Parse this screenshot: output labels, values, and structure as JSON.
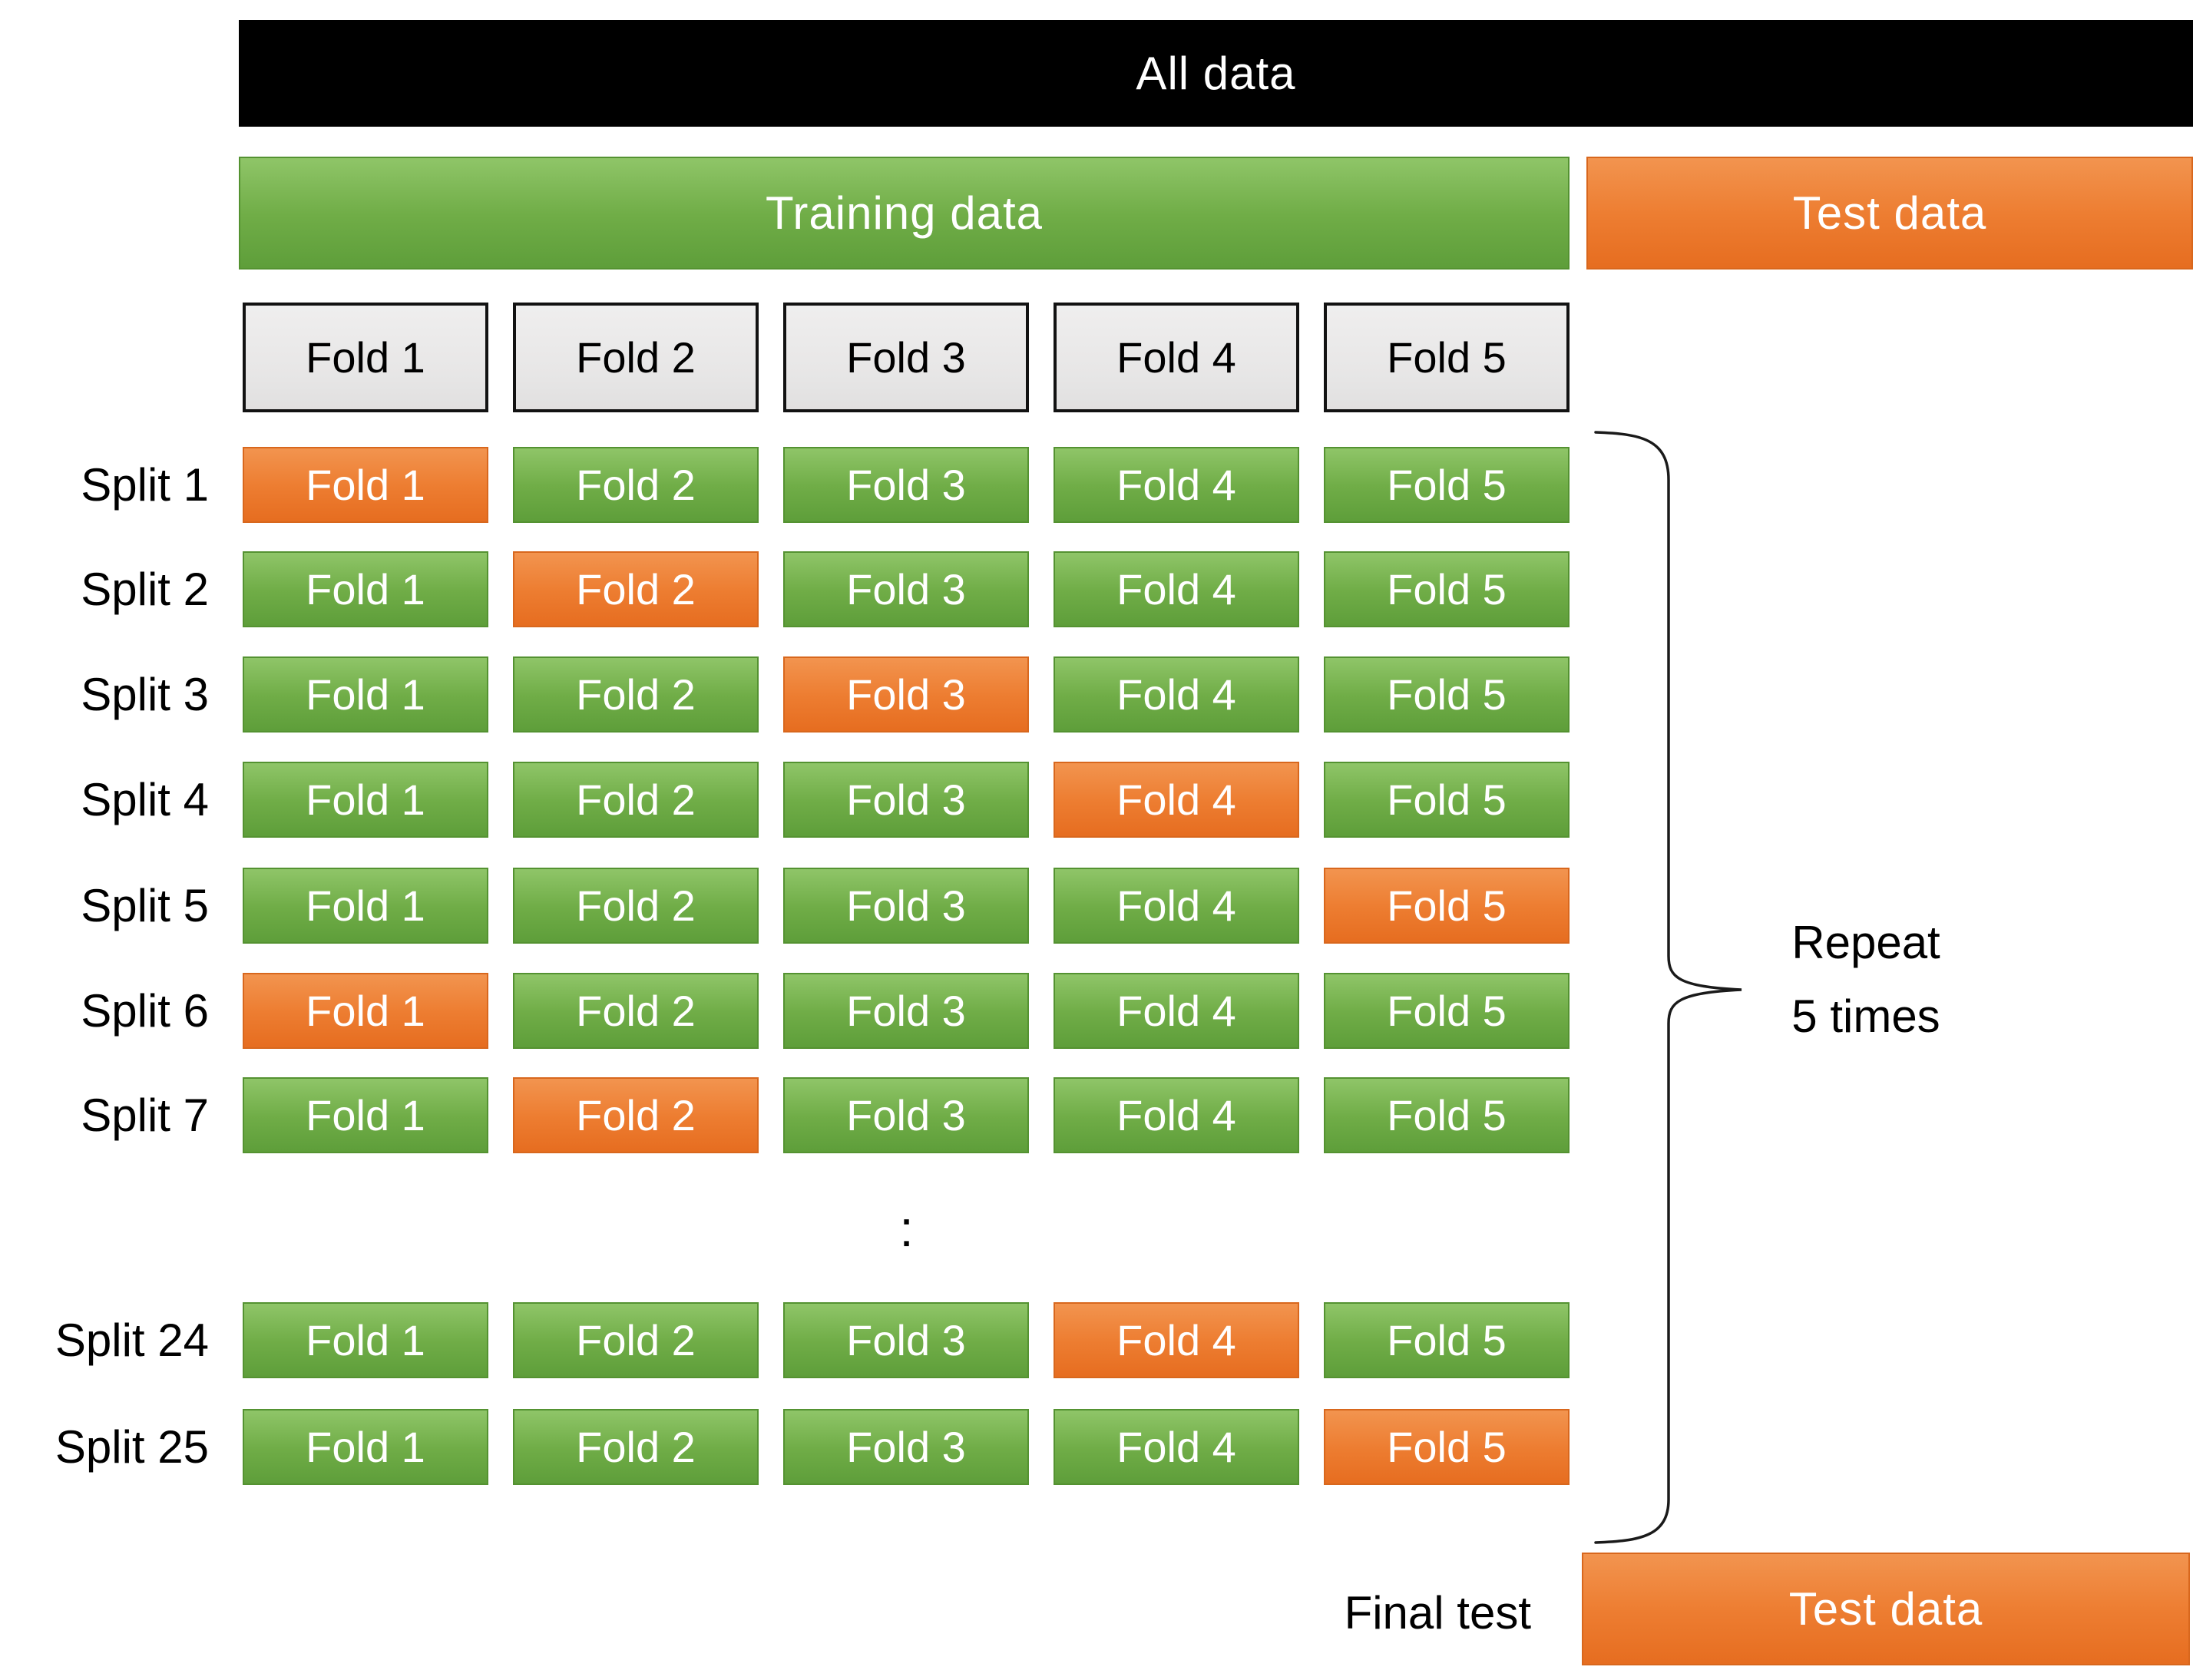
{
  "diagram": {
    "all_data_label": "All data",
    "training_label": "Training data",
    "test_label": "Test data",
    "fold_headers": [
      "Fold 1",
      "Fold 2",
      "Fold 3",
      "Fold 4",
      "Fold 5"
    ],
    "splits": [
      {
        "label": "Split 1",
        "folds": [
          "Fold 1",
          "Fold 2",
          "Fold 3",
          "Fold 4",
          "Fold 5"
        ],
        "test_fold_index": 0
      },
      {
        "label": "Split 2",
        "folds": [
          "Fold 1",
          "Fold 2",
          "Fold 3",
          "Fold 4",
          "Fold 5"
        ],
        "test_fold_index": 1
      },
      {
        "label": "Split 3",
        "folds": [
          "Fold 1",
          "Fold 2",
          "Fold 3",
          "Fold 4",
          "Fold 5"
        ],
        "test_fold_index": 2
      },
      {
        "label": "Split 4",
        "folds": [
          "Fold 1",
          "Fold 2",
          "Fold 3",
          "Fold 4",
          "Fold 5"
        ],
        "test_fold_index": 3
      },
      {
        "label": "Split 5",
        "folds": [
          "Fold 1",
          "Fold 2",
          "Fold 3",
          "Fold 4",
          "Fold 5"
        ],
        "test_fold_index": 4
      },
      {
        "label": "Split 6",
        "folds": [
          "Fold 1",
          "Fold 2",
          "Fold 3",
          "Fold 4",
          "Fold 5"
        ],
        "test_fold_index": 0
      },
      {
        "label": "Split 7",
        "folds": [
          "Fold 1",
          "Fold 2",
          "Fold 3",
          "Fold 4",
          "Fold 5"
        ],
        "test_fold_index": 1
      },
      {
        "label": "Split 24",
        "folds": [
          "Fold 1",
          "Fold 2",
          "Fold 3",
          "Fold 4",
          "Fold 5"
        ],
        "test_fold_index": 3
      },
      {
        "label": "Split 25",
        "folds": [
          "Fold 1",
          "Fold 2",
          "Fold 3",
          "Fold 4",
          "Fold 5"
        ],
        "test_fold_index": 4
      }
    ],
    "ellipsis": ":",
    "repeat_note": {
      "line1": "Repeat",
      "line2": "5 times"
    },
    "final_test_label": "Final test",
    "final_test_box_label": "Test data",
    "colors": {
      "bar_black": "#000000",
      "green": "#70AD47",
      "green_light": "#8FC568",
      "green_dark": "#5E9E3A",
      "green_border": "#549231",
      "orange": "#ED7D31",
      "orange_light": "#F2944F",
      "orange_dark": "#E66D20",
      "orange_border": "#D8671D",
      "header_fill": "#E8E7E7",
      "header_border": "#121212",
      "text_white": "#FFFFFF",
      "text_black": "#000000"
    }
  }
}
